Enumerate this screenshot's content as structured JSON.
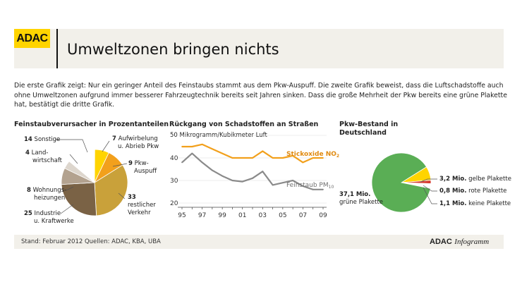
{
  "header": {
    "logo": "ADAC",
    "title": "Umweltzonen bringen nichts",
    "intro": "Die erste Grafik zeigt: Nur ein geringer Anteil des Feinstaubs stammt aus dem Pkw-Auspuff. Die zweite Grafik beweist, dass die Luftschadstoffe auch ohne Umweltzonen aufgrund immer besserer Fahrzeugtechnik bereits seit Jahren sinken. Dass die große Mehrheit der Pkw bereits eine grüne Plakette hat, bestätigt die dritte Grafik."
  },
  "chart_data": [
    {
      "type": "pie",
      "title": "Feinstaubverursacher in Prozentanteilen",
      "slices": [
        {
          "label": "Sonstige",
          "value": 14,
          "color": "#ffffff"
        },
        {
          "label": "Aufwirbelung u. Abrieb Pkw",
          "value": 7,
          "color": "#ffd400"
        },
        {
          "label": "Pkw-Auspuff",
          "value": 9,
          "color": "#f2a01c"
        },
        {
          "label": "restlicher Verkehr",
          "value": 33,
          "color": "#c9a13a"
        },
        {
          "label": "Industrie u. Kraftwerke",
          "value": 25,
          "color": "#7a6245"
        },
        {
          "label": "Wohnungsheizungen",
          "value": 8,
          "color": "#b3a28f"
        },
        {
          "label": "Landwirtschaft",
          "value": 4,
          "color": "#ddd6cd"
        }
      ]
    },
    {
      "type": "line",
      "title": "Rückgang von Schadstoffen an Straßen",
      "ylabel": "Mikrogramm/Kubikmeter Luft",
      "ylim": [
        20,
        50
      ],
      "yticks": [
        "20",
        "30",
        "40",
        "50"
      ],
      "x": [
        1995,
        1996,
        1997,
        1998,
        1999,
        2000,
        2001,
        2002,
        2003,
        2004,
        2005,
        2006,
        2007,
        2008,
        2009
      ],
      "xticklabels": [
        "95",
        "97",
        "99",
        "01",
        "03",
        "05",
        "07",
        "09"
      ],
      "series": [
        {
          "name": "Stickoxide NO2",
          "label": "Stickoxide NO",
          "sub": "2",
          "color": "#f2a01c",
          "values": [
            45,
            45,
            46,
            44,
            42,
            40,
            40,
            40,
            43,
            40,
            40,
            41,
            38,
            40,
            40
          ]
        },
        {
          "name": "Feinstaub PM10",
          "label": "Feinstaub PM",
          "sub": "10",
          "color": "#8a8a8a",
          "values": [
            38,
            42,
            38,
            34.5,
            32,
            30,
            29.5,
            31,
            34,
            28,
            29,
            30,
            27.5,
            26,
            26
          ]
        }
      ]
    },
    {
      "type": "pie",
      "title": "Pkw-Bestand in Deutschland",
      "unit": "Mio.",
      "slices": [
        {
          "label": "grüne Plakette",
          "value": 37.1,
          "color": "#5aae55"
        },
        {
          "label": "gelbe Plakette",
          "value": 3.2,
          "color": "#ffd400"
        },
        {
          "label": "rote Plakette",
          "value": 0.8,
          "color": "#d63b2f"
        },
        {
          "label": "keine Plakette",
          "value": 1.1,
          "color": "#ffffff"
        }
      ]
    }
  ],
  "pie1": {
    "title": "Feinstaubverursacher in Prozentanteilen",
    "labels": [
      {
        "value": "14",
        "text": "Sonstige"
      },
      {
        "value": "7",
        "text": "Aufwirbelung",
        "text2": "u. Abrieb Pkw"
      },
      {
        "value": "9",
        "text": "Pkw-",
        "text2": "Auspuff"
      },
      {
        "value": "33",
        "text": "restlicher",
        "text2": "Verkehr"
      },
      {
        "value": "25",
        "text": "Industrie",
        "text2": "u. Kraftwerke"
      },
      {
        "value": "8",
        "text": "Wohnungs-",
        "text2": "heizungen"
      },
      {
        "value": "4",
        "text": "Land-",
        "text2": "wirtschaft"
      }
    ]
  },
  "line": {
    "title": "Rückgang von Schadstoffen an Straßen",
    "unit_value": "50",
    "unit_text": "Mikrogramm/Kubikmeter Luft"
  },
  "pie2": {
    "title_line1": "Pkw-Bestand in",
    "title_line2": "Deutschland",
    "labels": [
      {
        "value": "37,1 Mio.",
        "text": "grüne Plakette"
      },
      {
        "value": "3,2 Mio.",
        "text": "gelbe Plakette"
      },
      {
        "value": "0,8 Mio.",
        "text": "rote Plakette"
      },
      {
        "value": "1,1 Mio.",
        "text": "keine Plakette"
      }
    ]
  },
  "footer": {
    "text": "Stand: Februar 2012   Quellen: ADAC, KBA, UBA",
    "brand_bold": "ADAC",
    "brand_italic": "Infogramm"
  }
}
